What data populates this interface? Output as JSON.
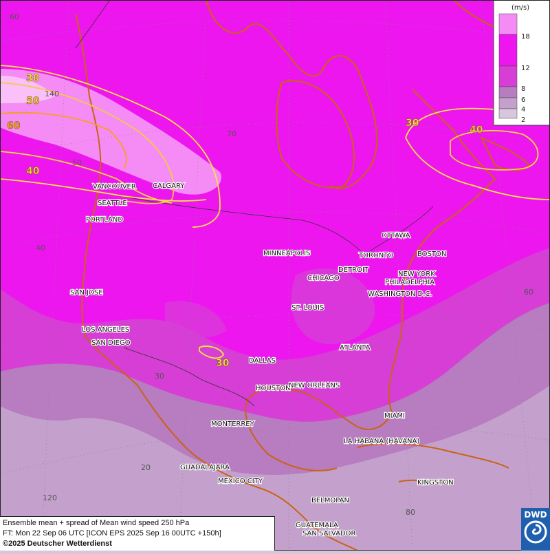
{
  "legend": {
    "unit": "(m/s)",
    "bands": [
      {
        "label": "18",
        "color": "#f58cf5"
      },
      {
        "label": "12",
        "color": "#ee16ee"
      },
      {
        "label": "8",
        "color": "#d63ed6"
      },
      {
        "label": "6",
        "color": "#b87cc0"
      },
      {
        "label": "4",
        "color": "#c4a0cc"
      },
      {
        "label": "2",
        "color": "#d8c6dc"
      }
    ]
  },
  "cities": [
    {
      "name": "VANCOUVER"
    },
    {
      "name": "CALGARY"
    },
    {
      "name": "SEATTLE"
    },
    {
      "name": "PORTLAND"
    },
    {
      "name": "OTTAWA"
    },
    {
      "name": "MINNEAPOLIS"
    },
    {
      "name": "TORONTO"
    },
    {
      "name": "BOSTON"
    },
    {
      "name": "DETROIT"
    },
    {
      "name": "NEW YORK"
    },
    {
      "name": "CHICAGO"
    },
    {
      "name": "PHILADELPHIA"
    },
    {
      "name": "SAN JOSE"
    },
    {
      "name": "WASHINGTON D.C."
    },
    {
      "name": "ST. LOUIS"
    },
    {
      "name": "LOS ANGELES"
    },
    {
      "name": "SAN DIEGO"
    },
    {
      "name": "ATLANTA"
    },
    {
      "name": "DALLAS"
    },
    {
      "name": "HOUSTON"
    },
    {
      "name": "NEW ORLEANS"
    },
    {
      "name": "MIAMI"
    },
    {
      "name": "MONTERREY"
    },
    {
      "name": "LA HABANA (HAVANA)"
    },
    {
      "name": "GUADALAJARA"
    },
    {
      "name": "MEXICO CITY"
    },
    {
      "name": "KINGSTON"
    },
    {
      "name": "BELMOPAN"
    },
    {
      "name": "GUATEMALA"
    },
    {
      "name": "SAN SALVADOR"
    }
  ],
  "grid_labels": [
    "70",
    "60",
    "50",
    "40",
    "30",
    "20",
    "60",
    "80",
    "120",
    "140"
  ],
  "contour_labels": [
    {
      "text": "30",
      "color": "#f5e642"
    },
    {
      "text": "50",
      "color": "#f5c842"
    },
    {
      "text": "60",
      "color": "#f5a020"
    },
    {
      "text": "40",
      "color": "#f5d542"
    },
    {
      "text": "30",
      "color": "#f5e642"
    },
    {
      "text": "40",
      "color": "#f5d542"
    },
    {
      "text": "30",
      "color": "#f5e642"
    }
  ],
  "info": {
    "line1": "Ensemble mean + spread of Mean wind speed 250 hPa",
    "line2": "FT: Mon 22 Sep 06 UTC [ICON EPS 2025 Sep 16 00UTC +150h]",
    "line3": "©2025 Deutscher Wetterdienst"
  },
  "logo": {
    "text": "DWD"
  }
}
